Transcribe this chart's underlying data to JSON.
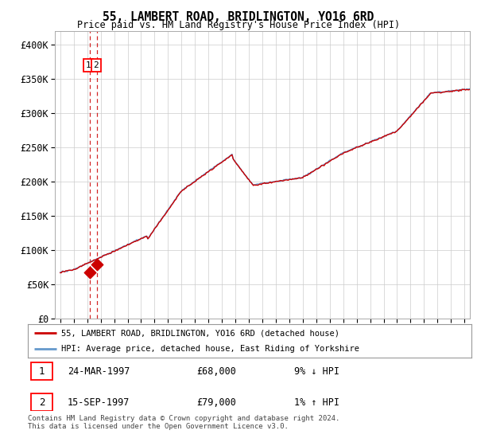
{
  "title": "55, LAMBERT ROAD, BRIDLINGTON, YO16 6RD",
  "subtitle": "Price paid vs. HM Land Registry's House Price Index (HPI)",
  "legend_line1": "55, LAMBERT ROAD, BRIDLINGTON, YO16 6RD (detached house)",
  "legend_line2": "HPI: Average price, detached house, East Riding of Yorkshire",
  "sale1_date": "24-MAR-1997",
  "sale1_price": 68000,
  "sale1_text": "9% ↓ HPI",
  "sale2_date": "15-SEP-1997",
  "sale2_price": 79000,
  "sale2_text": "1% ↑ HPI",
  "footer": "Contains HM Land Registry data © Crown copyright and database right 2024.\nThis data is licensed under the Open Government Licence v3.0.",
  "hpi_color": "#6699cc",
  "property_color": "#cc0000",
  "background_color": "#ffffff",
  "grid_color": "#cccccc",
  "ylim": [
    0,
    420000
  ],
  "yticks": [
    0,
    50000,
    100000,
    150000,
    200000,
    250000,
    300000,
    350000,
    400000
  ],
  "sale1_year": 1997.22,
  "sale2_year": 1997.71,
  "xlim_min": 1994.6,
  "xlim_max": 2025.4
}
